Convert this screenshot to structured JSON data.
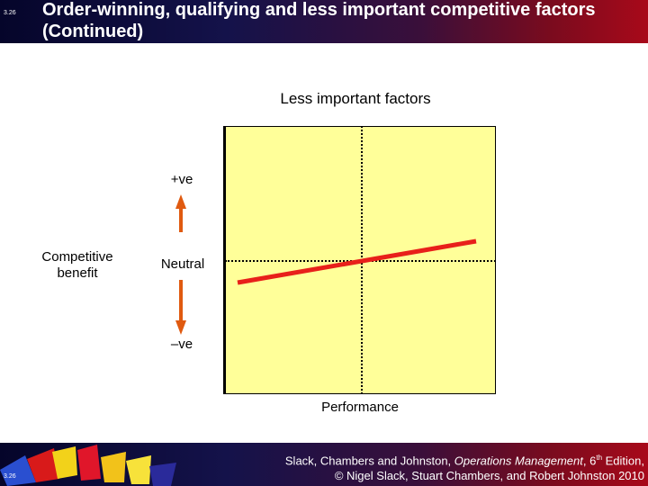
{
  "slide_number": "3.26",
  "title": "Order-winning, qualifying and less important competitive factors (Continued)",
  "diagram": {
    "title": "Less important factors",
    "y_axis_label": "Competitive benefit",
    "positive_label": "+ve",
    "neutral_label": "Neutral",
    "negative_label": "–ve",
    "x_axis_label": "Performance",
    "plot_color": "#ffff99",
    "line_color": "#e8201a",
    "arrow_color": "#e05a10"
  },
  "citation": {
    "authors": "Slack, Chambers and Johnston, ",
    "book": "Operations Management",
    "edition_pre": ", 6",
    "edition_sup": "th",
    "edition_post": " Edition,",
    "copyright": "© Nigel Slack, Stuart Chambers, and Robert Johnston 2010"
  }
}
